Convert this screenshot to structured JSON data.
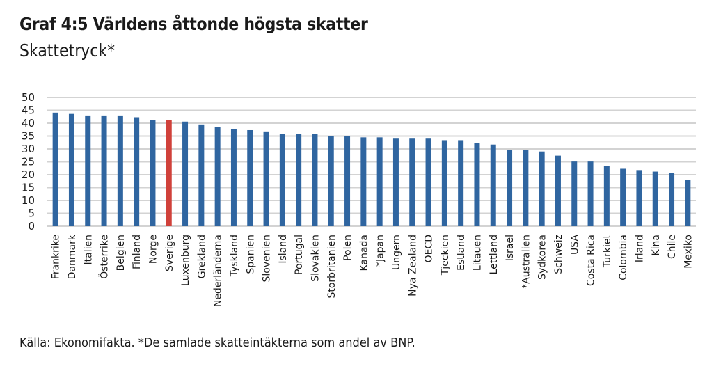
{
  "title": "Graf 4:5 Världens åttonde högsta skatter",
  "subtitle": "Skattetryck*",
  "source": "Källa: Ekonomifakta. *De samlade skatteintäkterna som andel av BNP.",
  "colors": {
    "bar": "#2f65a0",
    "highlight": "#d0413a",
    "grid": "#d3d3d3"
  },
  "chart_data": {
    "type": "bar",
    "title": "Graf 4:5 Världens åttonde högsta skatter",
    "subtitle": "Skattetryck*",
    "xlabel": "",
    "ylabel": "",
    "ylim": [
      0,
      50
    ],
    "yticks": [
      0,
      5,
      10,
      15,
      20,
      25,
      30,
      35,
      40,
      45,
      50
    ],
    "grid": true,
    "legend": "none",
    "highlight": "Sverige",
    "categories": [
      "Frankrike",
      "Danmark",
      "Italien",
      "Österrike",
      "Belgien",
      "Finland",
      "Norge",
      "Sverige",
      "Luxenburg",
      "Grekland",
      "Nederländerna",
      "Tyskland",
      "Spanien",
      "Slovenien",
      "Island",
      "Portugal",
      "Slovakien",
      "Storbritanien",
      "Polen",
      "Kanada",
      "*Japan",
      "Ungern",
      "Nya Zealand",
      "OECD",
      "Tjeckien",
      "Estland",
      "Litauen",
      "Lettland",
      "Israel",
      "*Australien",
      "Sydkorea",
      "Schweiz",
      "USA",
      "Costa Rica",
      "Turkiet",
      "Colombia",
      "Irland",
      "Kina",
      "Chile",
      "Mexiko"
    ],
    "values": [
      44.1,
      43.6,
      43.0,
      43.0,
      43.0,
      42.3,
      41.2,
      41.2,
      40.6,
      39.5,
      38.4,
      37.8,
      37.3,
      36.8,
      35.7,
      35.7,
      35.7,
      35.1,
      35.1,
      34.5,
      34.5,
      34.0,
      34.0,
      34.0,
      33.4,
      33.4,
      32.4,
      31.7,
      29.5,
      29.6,
      29.0,
      27.4,
      25.1,
      25.1,
      23.4,
      22.3,
      21.8,
      21.2,
      20.6,
      17.9
    ]
  }
}
